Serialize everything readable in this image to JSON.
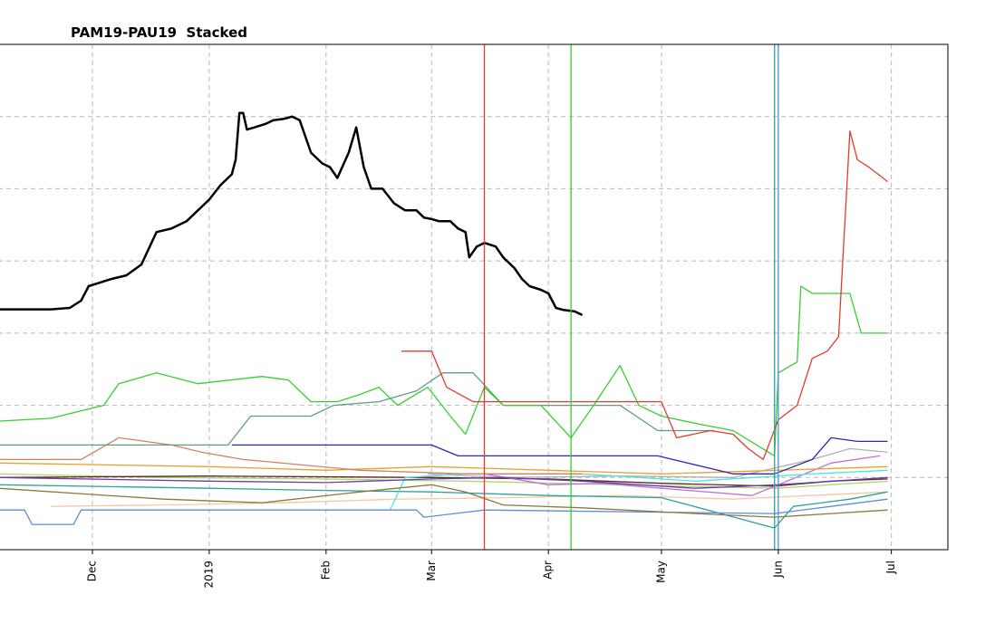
{
  "chart_data": {
    "type": "line",
    "title": "PAM19-PAU19  Stacked",
    "xlabel": "",
    "ylabel": "",
    "x_axis": "date",
    "xlim": [
      "2018-11-06",
      "2019-07-16"
    ],
    "x_ticks": [
      {
        "date": "2018-12-01",
        "label": "Dec"
      },
      {
        "date": "2019-01-01",
        "label": "2019"
      },
      {
        "date": "2019-02-01",
        "label": "Feb"
      },
      {
        "date": "2019-03-01",
        "label": "Mar"
      },
      {
        "date": "2019-04-01",
        "label": "Apr"
      },
      {
        "date": "2019-05-01",
        "label": "May"
      },
      {
        "date": "2019-06-01",
        "label": "Jun"
      },
      {
        "date": "2019-07-01",
        "label": "Jul"
      }
    ],
    "ylim": [
      0,
      7
    ],
    "y_gridlines": [
      1,
      2,
      3,
      4,
      5,
      6
    ],
    "y_tick_labels_visible": false,
    "grid": true,
    "grid_style": "dashed",
    "legend": "none",
    "vertical_markers": [
      {
        "date": "2019-03-15",
        "color": "#e8392b"
      },
      {
        "date": "2019-04-07",
        "color": "#35d02f"
      },
      {
        "date": "2019-05-31",
        "color": "#2aa39a"
      },
      {
        "date": "2019-06-01",
        "color": "#5b8fd6"
      }
    ],
    "series": [
      {
        "color": "#000000",
        "width": 2.5,
        "points": [
          [
            "2018-11-06",
            3.33
          ],
          [
            "2018-11-20",
            3.33
          ],
          [
            "2018-11-25",
            3.35
          ],
          [
            "2018-11-28",
            3.45
          ],
          [
            "2018-11-30",
            3.65
          ],
          [
            "2018-12-03",
            3.7
          ],
          [
            "2018-12-06",
            3.75
          ],
          [
            "2018-12-10",
            3.8
          ],
          [
            "2018-12-14",
            3.95
          ],
          [
            "2018-12-18",
            4.4
          ],
          [
            "2018-12-22",
            4.45
          ],
          [
            "2018-12-26",
            4.55
          ],
          [
            "2018-12-29",
            4.7
          ],
          [
            "2019-01-01",
            4.85
          ],
          [
            "2019-01-04",
            5.05
          ],
          [
            "2019-01-07",
            5.2
          ],
          [
            "2019-01-08",
            5.4
          ],
          [
            "2019-01-09",
            6.05
          ],
          [
            "2019-01-10",
            6.05
          ],
          [
            "2019-01-11",
            5.82
          ],
          [
            "2019-01-13",
            5.85
          ],
          [
            "2019-01-16",
            5.9
          ],
          [
            "2019-01-18",
            5.95
          ],
          [
            "2019-01-21",
            5.97
          ],
          [
            "2019-01-23",
            6.0
          ],
          [
            "2019-01-25",
            5.95
          ],
          [
            "2019-01-28",
            5.5
          ],
          [
            "2019-01-31",
            5.35
          ],
          [
            "2019-02-02",
            5.3
          ],
          [
            "2019-02-04",
            5.15
          ],
          [
            "2019-02-07",
            5.5
          ],
          [
            "2019-02-09",
            5.85
          ],
          [
            "2019-02-11",
            5.3
          ],
          [
            "2019-02-13",
            5.0
          ],
          [
            "2019-02-16",
            5.0
          ],
          [
            "2019-02-19",
            4.8
          ],
          [
            "2019-02-22",
            4.7
          ],
          [
            "2019-02-25",
            4.7
          ],
          [
            "2019-02-27",
            4.6
          ],
          [
            "2019-03-01",
            4.58
          ],
          [
            "2019-03-03",
            4.55
          ],
          [
            "2019-03-06",
            4.55
          ],
          [
            "2019-03-08",
            4.45
          ],
          [
            "2019-03-10",
            4.4
          ],
          [
            "2019-03-11",
            4.05
          ],
          [
            "2019-03-13",
            4.2
          ],
          [
            "2019-03-15",
            4.25
          ],
          [
            "2019-03-18",
            4.2
          ],
          [
            "2019-03-20",
            4.05
          ],
          [
            "2019-03-23",
            3.9
          ],
          [
            "2019-03-25",
            3.75
          ],
          [
            "2019-03-27",
            3.65
          ],
          [
            "2019-03-30",
            3.6
          ],
          [
            "2019-04-01",
            3.55
          ],
          [
            "2019-04-03",
            3.35
          ],
          [
            "2019-04-05",
            3.32
          ],
          [
            "2019-04-08",
            3.3
          ],
          [
            "2019-04-10",
            3.25
          ]
        ]
      },
      {
        "color": "#e8392b",
        "width": 1.3,
        "points": [
          [
            "2019-02-21",
            2.75
          ],
          [
            "2019-03-01",
            2.75
          ],
          [
            "2019-03-05",
            2.25
          ],
          [
            "2019-03-12",
            2.05
          ],
          [
            "2019-04-01",
            2.05
          ],
          [
            "2019-05-01",
            2.05
          ],
          [
            "2019-05-05",
            1.55
          ],
          [
            "2019-05-14",
            1.65
          ],
          [
            "2019-05-20",
            1.6
          ],
          [
            "2019-05-24",
            1.4
          ],
          [
            "2019-05-28",
            1.25
          ],
          [
            "2019-06-01",
            1.8
          ],
          [
            "2019-06-06",
            2.0
          ],
          [
            "2019-06-10",
            2.65
          ],
          [
            "2019-06-14",
            2.75
          ],
          [
            "2019-06-17",
            2.95
          ],
          [
            "2019-06-20",
            5.8
          ],
          [
            "2019-06-22",
            5.4
          ],
          [
            "2019-06-25",
            5.3
          ],
          [
            "2019-06-30",
            5.1
          ]
        ]
      },
      {
        "color": "#35d02f",
        "width": 1.3,
        "points": [
          [
            "2018-11-06",
            1.78
          ],
          [
            "2018-11-20",
            1.82
          ],
          [
            "2018-11-30",
            1.95
          ],
          [
            "2018-12-04",
            2.0
          ],
          [
            "2018-12-08",
            2.3
          ],
          [
            "2018-12-18",
            2.45
          ],
          [
            "2018-12-29",
            2.3
          ],
          [
            "2019-01-15",
            2.4
          ],
          [
            "2019-01-22",
            2.35
          ],
          [
            "2019-01-28",
            2.05
          ],
          [
            "2019-02-04",
            2.05
          ],
          [
            "2019-02-10",
            2.15
          ],
          [
            "2019-02-15",
            2.25
          ],
          [
            "2019-02-20",
            2.0
          ],
          [
            "2019-02-28",
            2.25
          ],
          [
            "2019-03-06",
            1.85
          ],
          [
            "2019-03-10",
            1.6
          ],
          [
            "2019-03-15",
            2.25
          ],
          [
            "2019-03-20",
            2.0
          ],
          [
            "2019-03-30",
            2.0
          ],
          [
            "2019-04-07",
            1.55
          ],
          [
            "2019-04-13",
            2.0
          ],
          [
            "2019-04-20",
            2.55
          ],
          [
            "2019-04-25",
            2.0
          ],
          [
            "2019-05-01",
            1.85
          ],
          [
            "2019-05-10",
            1.75
          ],
          [
            "2019-05-20",
            1.65
          ],
          [
            "2019-05-31",
            1.3
          ],
          [
            "2019-06-01",
            2.45
          ],
          [
            "2019-06-06",
            2.6
          ],
          [
            "2019-06-07",
            3.65
          ],
          [
            "2019-06-10",
            3.55
          ],
          [
            "2019-06-20",
            3.55
          ],
          [
            "2019-06-23",
            3.0
          ],
          [
            "2019-06-30",
            3.0
          ]
        ]
      },
      {
        "color": "#5e9e86",
        "width": 1.3,
        "points": [
          [
            "2018-11-06",
            1.45
          ],
          [
            "2019-01-06",
            1.45
          ],
          [
            "2019-01-12",
            1.85
          ],
          [
            "2019-01-28",
            1.85
          ],
          [
            "2019-02-03",
            2.0
          ],
          [
            "2019-02-15",
            2.05
          ],
          [
            "2019-02-25",
            2.2
          ],
          [
            "2019-03-04",
            2.45
          ],
          [
            "2019-03-12",
            2.45
          ],
          [
            "2019-03-20",
            2.0
          ],
          [
            "2019-04-20",
            2.0
          ],
          [
            "2019-04-30",
            1.65
          ],
          [
            "2019-05-15",
            1.65
          ]
        ]
      },
      {
        "color": "#d4805f",
        "width": 1.3,
        "points": [
          [
            "2018-11-06",
            1.25
          ],
          [
            "2018-11-28",
            1.25
          ],
          [
            "2018-12-08",
            1.55
          ],
          [
            "2018-12-22",
            1.45
          ],
          [
            "2018-12-30",
            1.35
          ],
          [
            "2019-01-10",
            1.25
          ],
          [
            "2019-02-10",
            1.1
          ],
          [
            "2019-03-10",
            1.05
          ],
          [
            "2019-04-10",
            1.05
          ]
        ]
      },
      {
        "color": "#2a2aad",
        "width": 1.3,
        "points": [
          [
            "2019-01-07",
            1.45
          ],
          [
            "2019-03-01",
            1.45
          ],
          [
            "2019-03-08",
            1.3
          ],
          [
            "2019-03-25",
            1.3
          ],
          [
            "2019-04-30",
            1.3
          ],
          [
            "2019-05-20",
            1.05
          ],
          [
            "2019-05-31",
            1.05
          ],
          [
            "2019-06-10",
            1.25
          ],
          [
            "2019-06-15",
            1.55
          ],
          [
            "2019-06-22",
            1.5
          ],
          [
            "2019-06-30",
            1.5
          ]
        ]
      },
      {
        "color": "#6a3ab0",
        "width": 1.3,
        "points": [
          [
            "2018-11-06",
            1.0
          ],
          [
            "2019-01-01",
            0.95
          ],
          [
            "2019-02-01",
            0.93
          ],
          [
            "2019-03-01",
            0.98
          ],
          [
            "2019-03-20",
            1.0
          ],
          [
            "2019-04-10",
            0.95
          ],
          [
            "2019-05-10",
            0.85
          ],
          [
            "2019-06-01",
            0.9
          ],
          [
            "2019-06-30",
            1.0
          ]
        ]
      },
      {
        "color": "#8a7a3a",
        "width": 1.3,
        "points": [
          [
            "2018-11-06",
            0.85
          ],
          [
            "2018-12-20",
            0.7
          ],
          [
            "2019-01-15",
            0.65
          ],
          [
            "2019-02-10",
            0.8
          ],
          [
            "2019-03-01",
            0.9
          ],
          [
            "2019-03-10",
            0.8
          ],
          [
            "2019-03-20",
            0.62
          ],
          [
            "2019-04-10",
            0.58
          ],
          [
            "2019-05-10",
            0.5
          ],
          [
            "2019-05-31",
            0.45
          ],
          [
            "2019-06-15",
            0.5
          ],
          [
            "2019-06-30",
            0.55
          ]
        ]
      },
      {
        "color": "#5b8fd6",
        "width": 1.3,
        "points": [
          [
            "2018-11-06",
            0.55
          ],
          [
            "2018-11-13",
            0.55
          ],
          [
            "2018-11-15",
            0.35
          ],
          [
            "2018-11-26",
            0.35
          ],
          [
            "2018-11-28",
            0.55
          ],
          [
            "2019-02-25",
            0.55
          ],
          [
            "2019-02-27",
            0.45
          ],
          [
            "2019-03-15",
            0.55
          ],
          [
            "2019-05-31",
            0.5
          ],
          [
            "2019-06-15",
            0.6
          ],
          [
            "2019-06-30",
            0.7
          ]
        ]
      },
      {
        "color": "#4fe6e0",
        "width": 1.3,
        "points": [
          [
            "2019-02-18",
            0.55
          ],
          [
            "2019-02-22",
            1.0
          ],
          [
            "2019-03-10",
            1.05
          ],
          [
            "2019-04-10",
            1.05
          ],
          [
            "2019-05-10",
            0.95
          ],
          [
            "2019-06-10",
            1.05
          ],
          [
            "2019-06-30",
            1.1
          ]
        ]
      },
      {
        "color": "#e8a030",
        "width": 1.3,
        "points": [
          [
            "2018-11-06",
            1.2
          ],
          [
            "2019-01-01",
            1.15
          ],
          [
            "2019-02-01",
            1.1
          ],
          [
            "2019-03-01",
            1.15
          ],
          [
            "2019-04-01",
            1.1
          ],
          [
            "2019-05-01",
            1.05
          ],
          [
            "2019-06-01",
            1.1
          ],
          [
            "2019-06-30",
            1.15
          ]
        ]
      },
      {
        "color": "#c06cdc",
        "width": 1.3,
        "points": [
          [
            "2019-03-05",
            1.05
          ],
          [
            "2019-03-15",
            1.05
          ],
          [
            "2019-04-01",
            0.9
          ],
          [
            "2019-04-15",
            0.92
          ],
          [
            "2019-05-01",
            0.85
          ],
          [
            "2019-05-25",
            0.75
          ],
          [
            "2019-06-01",
            0.9
          ],
          [
            "2019-06-15",
            1.2
          ],
          [
            "2019-06-28",
            1.3
          ]
        ]
      },
      {
        "color": "#5a2a1a",
        "width": 1.3,
        "points": [
          [
            "2018-11-06",
            1.0
          ],
          [
            "2019-01-01",
            1.02
          ],
          [
            "2019-03-01",
            1.0
          ],
          [
            "2019-04-01",
            0.98
          ],
          [
            "2019-05-01",
            0.92
          ],
          [
            "2019-05-31",
            0.88
          ],
          [
            "2019-06-15",
            0.95
          ],
          [
            "2019-06-30",
            0.98
          ]
        ]
      },
      {
        "color": "#b0b0b0",
        "width": 1.3,
        "points": [
          [
            "2019-02-28",
            1.05
          ],
          [
            "2019-03-20",
            1.0
          ],
          [
            "2019-04-20",
            1.02
          ],
          [
            "2019-05-20",
            1.0
          ],
          [
            "2019-06-10",
            1.25
          ],
          [
            "2019-06-20",
            1.4
          ],
          [
            "2019-06-30",
            1.35
          ]
        ]
      },
      {
        "color": "#2aa39a",
        "width": 1.3,
        "points": [
          [
            "2018-11-06",
            0.9
          ],
          [
            "2019-01-01",
            0.85
          ],
          [
            "2019-02-01",
            0.82
          ],
          [
            "2019-03-01",
            0.8
          ],
          [
            "2019-04-01",
            0.75
          ],
          [
            "2019-05-01",
            0.72
          ],
          [
            "2019-05-31",
            0.3
          ],
          [
            "2019-06-05",
            0.6
          ],
          [
            "2019-06-20",
            0.7
          ],
          [
            "2019-06-30",
            0.8
          ]
        ]
      },
      {
        "color": "#f5c8a0",
        "width": 1.3,
        "points": [
          [
            "2018-11-20",
            0.6
          ],
          [
            "2018-12-20",
            0.62
          ],
          [
            "2019-01-20",
            0.65
          ],
          [
            "2019-02-20",
            0.7
          ],
          [
            "2019-03-20",
            0.72
          ],
          [
            "2019-04-20",
            0.75
          ],
          [
            "2019-05-20",
            0.7
          ],
          [
            "2019-06-30",
            0.8
          ]
        ]
      },
      {
        "color": "#a8d86a",
        "width": 1.3,
        "points": [
          [
            "2018-11-06",
            1.05
          ],
          [
            "2018-12-20",
            1.0
          ],
          [
            "2019-01-30",
            0.98
          ],
          [
            "2019-03-10",
            0.95
          ],
          [
            "2019-04-20",
            0.9
          ],
          [
            "2019-05-31",
            0.85
          ],
          [
            "2019-06-30",
            0.95
          ]
        ]
      }
    ]
  }
}
